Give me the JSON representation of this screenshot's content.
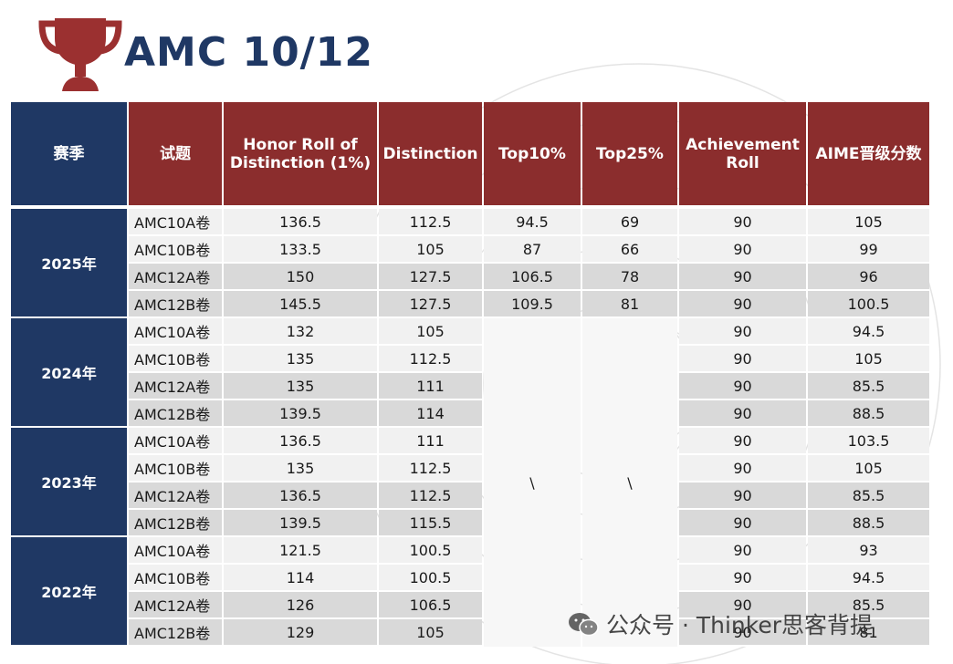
{
  "title": "AMC 10/12",
  "headers": [
    "赛季",
    "试题",
    "Honor Roll of Distinction (1%)",
    "Distinction",
    "Top10%",
    "Top25%",
    "Achievement Roll",
    "AIME晋级分数"
  ],
  "seasons": [
    {
      "season": "2025年",
      "rows": [
        {
          "exam": "AMC10A卷",
          "honor": "136.5",
          "distinction": "112.5",
          "top10": "94.5",
          "top25": "69",
          "achievement": "90",
          "aime": "105"
        },
        {
          "exam": "AMC10B卷",
          "honor": "133.5",
          "distinction": "105",
          "top10": "87",
          "top25": "66",
          "achievement": "90",
          "aime": "99"
        },
        {
          "exam": "AMC12A卷",
          "honor": "150",
          "distinction": "127.5",
          "top10": "106.5",
          "top25": "78",
          "achievement": "90",
          "aime": "96"
        },
        {
          "exam": "AMC12B卷",
          "honor": "145.5",
          "distinction": "127.5",
          "top10": "109.5",
          "top25": "81",
          "achievement": "90",
          "aime": "100.5"
        }
      ]
    },
    {
      "season": "2024年",
      "rows": [
        {
          "exam": "AMC10A卷",
          "honor": "132",
          "distinction": "105",
          "achievement": "90",
          "aime": "94.5"
        },
        {
          "exam": "AMC10B卷",
          "honor": "135",
          "distinction": "112.5",
          "achievement": "90",
          "aime": "105"
        },
        {
          "exam": "AMC12A卷",
          "honor": "135",
          "distinction": "111",
          "achievement": "90",
          "aime": "85.5"
        },
        {
          "exam": "AMC12B卷",
          "honor": "139.5",
          "distinction": "114",
          "achievement": "90",
          "aime": "88.5"
        }
      ]
    },
    {
      "season": "2023年",
      "rows": [
        {
          "exam": "AMC10A卷",
          "honor": "136.5",
          "distinction": "111",
          "achievement": "90",
          "aime": "103.5"
        },
        {
          "exam": "AMC10B卷",
          "honor": "135",
          "distinction": "112.5",
          "achievement": "90",
          "aime": "105"
        },
        {
          "exam": "AMC12A卷",
          "honor": "136.5",
          "distinction": "112.5",
          "achievement": "90",
          "aime": "85.5"
        },
        {
          "exam": "AMC12B卷",
          "honor": "139.5",
          "distinction": "115.5",
          "achievement": "90",
          "aime": "88.5"
        }
      ]
    },
    {
      "season": "2022年",
      "rows": [
        {
          "exam": "AMC10A卷",
          "honor": "121.5",
          "distinction": "100.5",
          "achievement": "90",
          "aime": "93"
        },
        {
          "exam": "AMC10B卷",
          "honor": "114",
          "distinction": "100.5",
          "achievement": "90",
          "aime": "94.5"
        },
        {
          "exam": "AMC12A卷",
          "honor": "126",
          "distinction": "106.5",
          "achievement": "90",
          "aime": "85.5"
        },
        {
          "exam": "AMC12B卷",
          "honor": "129",
          "distinction": "105",
          "achievement": "90",
          "aime": "81"
        }
      ]
    }
  ],
  "blank_top10": "\\",
  "blank_top25": "\\",
  "watermark": "公众号 · Thinker思客背提",
  "colors": {
    "header_red": "#8b2d2d",
    "season_navy": "#1f3864",
    "title_navy": "#1f3864",
    "row_light": "#f1f1f1",
    "row_dark": "#d9d9d9"
  }
}
